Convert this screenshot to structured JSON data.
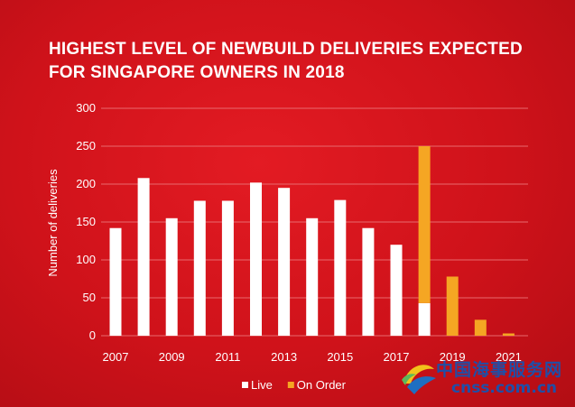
{
  "chart_data": {
    "type": "bar",
    "title_lines": [
      "HIGHEST LEVEL OF NEWBUILD DELIVERIES EXPECTED",
      "FOR SINGAPORE OWNERS IN 2018"
    ],
    "ylabel": "Number of deliveries",
    "xlabel": "",
    "ylim": [
      0,
      300
    ],
    "yticks": [
      0,
      50,
      100,
      150,
      200,
      250,
      300
    ],
    "categories": [
      "2007",
      "2008",
      "2009",
      "2010",
      "2011",
      "2012",
      "2013",
      "2014",
      "2015",
      "2016",
      "2017",
      "2018",
      "2019",
      "2020",
      "2021"
    ],
    "xtick_labels": [
      "2007",
      "",
      "2009",
      "",
      "2011",
      "",
      "2013",
      "",
      "2015",
      "",
      "2017",
      "",
      "2019",
      "",
      "2021"
    ],
    "series": [
      {
        "name": "Live",
        "color": "#ffffff",
        "values": [
          142,
          208,
          155,
          178,
          178,
          202,
          195,
          155,
          179,
          142,
          120,
          43,
          0,
          0,
          0
        ]
      },
      {
        "name": "On Order",
        "color": "#f5a623",
        "values": [
          0,
          0,
          0,
          0,
          0,
          0,
          0,
          0,
          0,
          0,
          0,
          207,
          78,
          21,
          3
        ]
      }
    ],
    "stacked": true,
    "legend_position": "bottom-center",
    "grid": true
  },
  "watermark": {
    "chinese": "中国海事服务网",
    "url": "cnss.com.cn"
  },
  "colors": {
    "background": "#d0101a",
    "grid": "#e86a6e",
    "text": "#ffffff"
  }
}
